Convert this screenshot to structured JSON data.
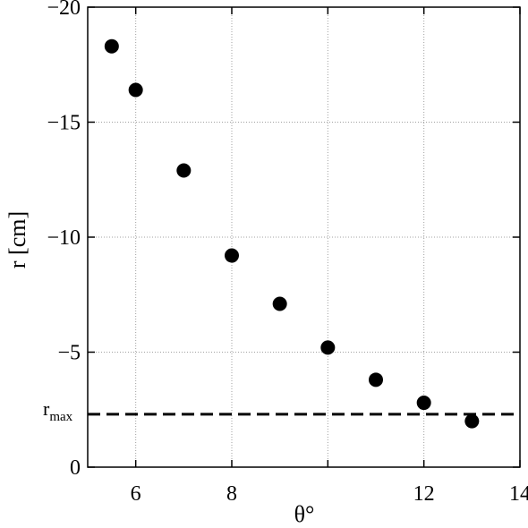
{
  "chart_data": {
    "type": "scatter",
    "xlabel": "θ°",
    "ylabel": "r [cm]",
    "xlim": [
      5,
      14
    ],
    "ylim": [
      0,
      -20
    ],
    "y_axis_inverted": true,
    "grid": true,
    "x_ticks": [
      6,
      8,
      12,
      14
    ],
    "x_gridlines": [
      6,
      8,
      10,
      12,
      14
    ],
    "y_ticks": [
      0,
      -5,
      -10,
      -15,
      -20
    ],
    "y_tick_labels": [
      "0",
      "−5",
      "−10",
      "−15",
      "−20"
    ],
    "points": [
      {
        "x": 5.5,
        "y": -18.3
      },
      {
        "x": 6,
        "y": -16.4
      },
      {
        "x": 7,
        "y": -12.9
      },
      {
        "x": 8,
        "y": -9.2
      },
      {
        "x": 9,
        "y": -7.1
      },
      {
        "x": 10,
        "y": -5.2
      },
      {
        "x": 11,
        "y": -3.8
      },
      {
        "x": 12,
        "y": -2.8
      },
      {
        "x": 13,
        "y": -2.0
      }
    ],
    "reference_line": {
      "label": "r",
      "label_sub": "max",
      "y": -2.3,
      "style": "dashed"
    },
    "marker_color": "#000000"
  }
}
